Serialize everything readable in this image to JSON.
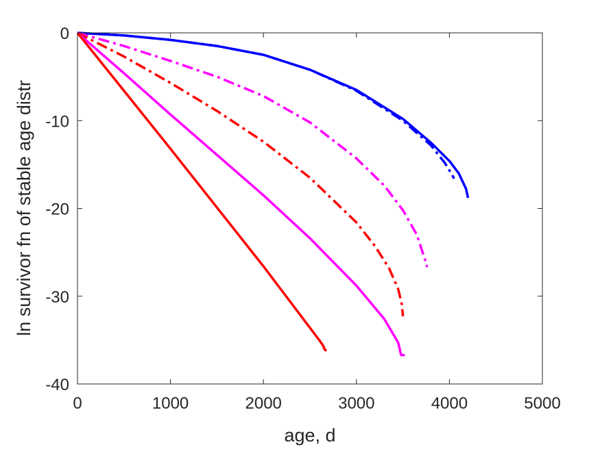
{
  "chart_data": {
    "type": "line",
    "title": "",
    "xlabel": "age, d",
    "ylabel": "ln survivor fn of stable age distr",
    "xlim": [
      0,
      5000
    ],
    "ylim": [
      -40,
      0
    ],
    "xticks": [
      0,
      1000,
      2000,
      3000,
      4000,
      5000
    ],
    "yticks": [
      0,
      -10,
      -20,
      -30,
      -40
    ],
    "xtick_labels": [
      "0",
      "1000",
      "2000",
      "3000",
      "4000",
      "5000"
    ],
    "ytick_labels": [
      "0",
      "-10",
      "-20",
      "-30",
      "-40"
    ],
    "grid": false,
    "legend": "none",
    "series": [
      {
        "color": "#0000ff",
        "style": "solid",
        "x": [
          0,
          500,
          1000,
          1500,
          2000,
          2500,
          3000,
          3500,
          3800,
          4000,
          4100,
          4180,
          4200
        ],
        "y": [
          0,
          -0.3,
          -0.8,
          -1.5,
          -2.5,
          -4.2,
          -6.5,
          -9.8,
          -12.5,
          -14.6,
          -16.0,
          -17.8,
          -18.8
        ]
      },
      {
        "color": "#0000ff",
        "style": "dashdot",
        "x": [
          0,
          500,
          1000,
          1500,
          2000,
          2500,
          3000,
          3500,
          3800,
          3950,
          4030,
          4050
        ],
        "y": [
          0,
          -0.3,
          -0.8,
          -1.5,
          -2.5,
          -4.2,
          -6.6,
          -10.0,
          -12.8,
          -14.8,
          -16.2,
          -16.6
        ]
      },
      {
        "color": "#ff00ff",
        "style": "dashdot",
        "x": [
          0,
          500,
          1000,
          1500,
          2000,
          2500,
          3000,
          3300,
          3500,
          3650,
          3740,
          3760
        ],
        "y": [
          0,
          -1.5,
          -3.2,
          -5.0,
          -7.2,
          -10.2,
          -14.3,
          -17.4,
          -20.2,
          -23.0,
          -25.9,
          -26.7
        ]
      },
      {
        "color": "#ff0000",
        "style": "dashdot",
        "x": [
          0,
          500,
          1000,
          1500,
          2000,
          2500,
          3000,
          3200,
          3350,
          3450,
          3490,
          3500
        ],
        "y": [
          0,
          -2.7,
          -5.7,
          -8.9,
          -12.4,
          -16.5,
          -21.6,
          -24.3,
          -26.8,
          -29.2,
          -31.0,
          -32.3
        ]
      },
      {
        "color": "#ff00ff",
        "style": "solid",
        "x": [
          0,
          500,
          1000,
          1500,
          2000,
          2500,
          3000,
          3300,
          3450,
          3480,
          3500,
          3520
        ],
        "y": [
          0,
          -4.6,
          -9.3,
          -13.9,
          -18.5,
          -23.4,
          -28.8,
          -32.6,
          -35.3,
          -36.7,
          -36.7,
          -36.7
        ]
      },
      {
        "color": "#ff0000",
        "style": "solid",
        "x": [
          0,
          500,
          1000,
          1500,
          2000,
          2300,
          2500,
          2600,
          2640,
          2660,
          2680
        ],
        "y": [
          0,
          -6.6,
          -13.2,
          -19.9,
          -26.6,
          -30.8,
          -33.6,
          -35.0,
          -35.6,
          -36.1,
          -36.2
        ]
      }
    ]
  }
}
